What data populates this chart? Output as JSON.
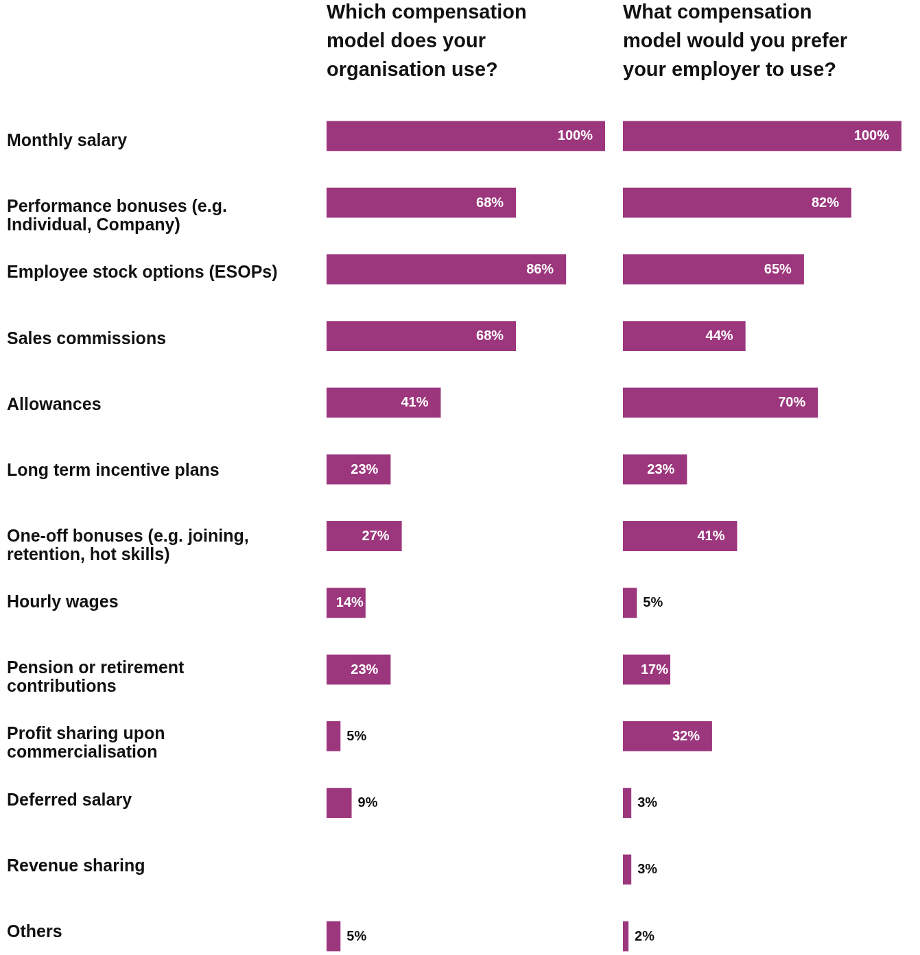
{
  "chart_data": [
    {
      "type": "bar",
      "orientation": "horizontal",
      "title": "Which compensation model does your organisation use?",
      "categories": [
        "Monthly salary",
        "Performance bonuses (e.g. Individual, Company)",
        "Employee stock options (ESOPs)",
        "Sales commissions",
        "Allowances",
        "Long term incentive plans",
        "One-off bonuses (e.g. joining, retention, hot skills)",
        "Hourly wages",
        "Pension or retirement contributions",
        "Profit sharing upon commercialisation",
        "Deferred salary",
        "Revenue sharing",
        "Others"
      ],
      "values": [
        100,
        68,
        86,
        68,
        41,
        23,
        27,
        14,
        23,
        5,
        9,
        null,
        5
      ],
      "value_labels": [
        "100%",
        "68%",
        "86%",
        "68%",
        "41%",
        "23%",
        "27%",
        "14%",
        "23%",
        "5%",
        "9%",
        null,
        "5%"
      ],
      "color": "#9c367d"
    },
    {
      "type": "bar",
      "orientation": "horizontal",
      "title": "What compensation model would you prefer your employer to use?",
      "categories": [
        "Monthly salary",
        "Performance bonuses (e.g. Individual, Company)",
        "Employee stock options (ESOPs)",
        "Sales commissions",
        "Allowances",
        "Long term incentive plans",
        "One-off bonuses (e.g. joining, retention, hot skills)",
        "Hourly wages",
        "Pension or retirement contributions",
        "Profit sharing upon commercialisation",
        "Deferred salary",
        "Revenue sharing",
        "Others"
      ],
      "values": [
        100,
        82,
        65,
        44,
        70,
        23,
        41,
        5,
        17,
        32,
        3,
        3,
        2
      ],
      "value_labels": [
        "100%",
        "82%",
        "65%",
        "44%",
        "70%",
        "23%",
        "41%",
        "5%",
        "17%",
        "32%",
        "3%",
        "3%",
        "2%"
      ],
      "color": "#9c367d",
      "tick_labels": false
    }
  ]
}
